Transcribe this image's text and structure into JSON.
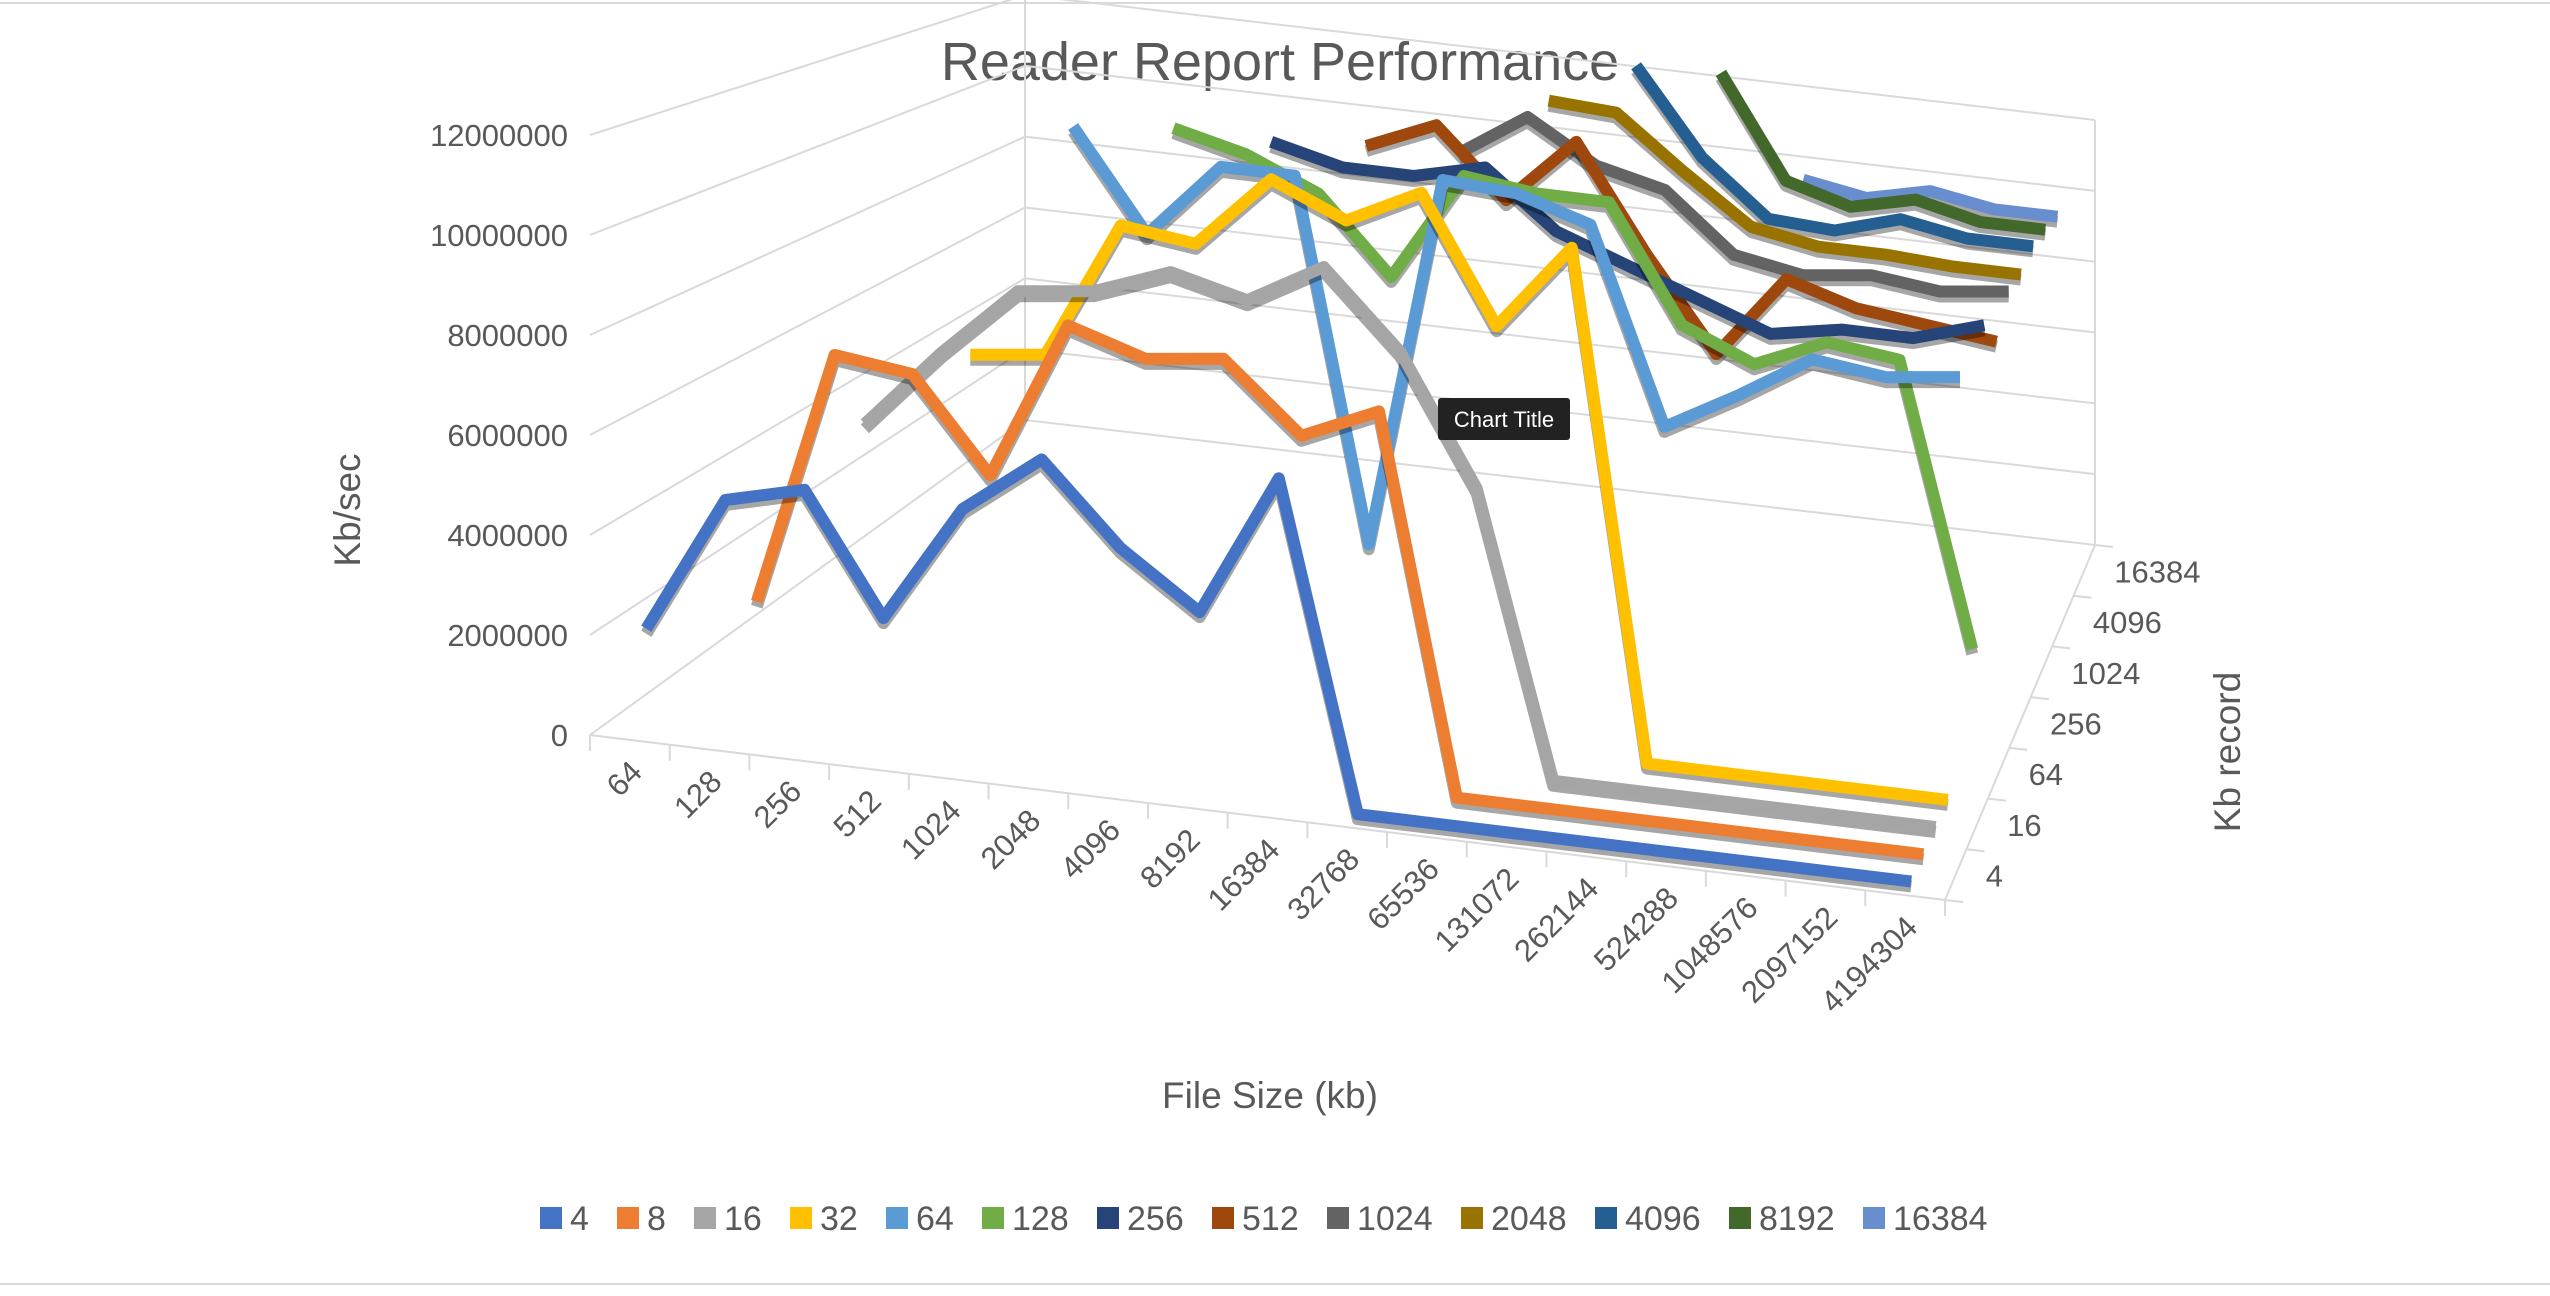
{
  "chart_data": {
    "type": "line",
    "chart_style": "3d-line",
    "title": "Reader Report Performance",
    "xlabel": "File Size (kb)",
    "ylabel": "Kb/sec",
    "zlabel": "Kb record",
    "tooltip": "Chart Title",
    "y_ticks": [
      "0",
      "2000000",
      "4000000",
      "6000000",
      "8000000",
      "10000000",
      "12000000"
    ],
    "ylim": [
      0,
      12000000
    ],
    "grid": true,
    "legend_position": "bottom",
    "categories": [
      "64",
      "128",
      "256",
      "512",
      "1024",
      "2048",
      "4096",
      "8192",
      "16384",
      "32768",
      "65536",
      "131072",
      "262144",
      "524288",
      "1048576",
      "2097152",
      "4194304"
    ],
    "z_ticks": [
      "4",
      "16",
      "64",
      "256",
      "1024",
      "4096",
      "16384"
    ],
    "series": [
      {
        "name": "4",
        "color": "#4472C4",
        "values": [
          2000000,
          4800000,
          5200000,
          2800000,
          5200000,
          6400000,
          4800000,
          3700000,
          6600000,
          0,
          0,
          0,
          0,
          0,
          0,
          0,
          0
        ]
      },
      {
        "name": "8",
        "color": "#ED7D31",
        "values": [
          null,
          2300000,
          7600000,
          7400000,
          5500000,
          8800000,
          8300000,
          8500000,
          7100000,
          7800000,
          0,
          0,
          0,
          0,
          0,
          0,
          0
        ]
      },
      {
        "name": "16",
        "color": "#A5A5A5",
        "values": [
          null,
          null,
          5800000,
          7500000,
          9000000,
          9200000,
          9800000,
          9400000,
          10300000,
          8700000,
          6000000,
          0,
          0,
          0,
          0,
          0,
          0
        ]
      },
      {
        "name": "32",
        "color": "#FFC000",
        "values": [
          null,
          null,
          null,
          7100000,
          7300000,
          10300000,
          10100000,
          11700000,
          11000000,
          11800000,
          9100000,
          11000000,
          0,
          0,
          0,
          0,
          0
        ]
      },
      {
        "name": "64",
        "color": "#5B9BD5",
        "values": [
          null,
          null,
          null,
          null,
          12000000,
          9800000,
          11500000,
          11500000,
          3500000,
          11800000,
          11700000,
          11200000,
          6900000,
          7800000,
          8800000,
          8600000,
          8800000
        ]
      },
      {
        "name": "128",
        "color": "#70AD47",
        "values": [
          null,
          null,
          null,
          null,
          null,
          11900000,
          11500000,
          10800000,
          9100000,
          11600000,
          11400000,
          11400000,
          8800000,
          8100000,
          8800000,
          8600000,
          2200000
        ]
      },
      {
        "name": "256",
        "color": "#264478",
        "values": [
          null,
          null,
          null,
          null,
          null,
          null,
          11500000,
          11100000,
          11100000,
          11500000,
          10200000,
          9600000,
          9000000,
          8400000,
          8700000,
          8700000,
          9200000
        ]
      },
      {
        "name": "512",
        "color": "#9E480E",
        "values": [
          null,
          null,
          null,
          null,
          null,
          null,
          null,
          11300000,
          12000000,
          10400000,
          12000000,
          9500000,
          7300000,
          9300000,
          8800000,
          8600000,
          8400000
        ]
      },
      {
        "name": "1024",
        "color": "#636363",
        "values": [
          null,
          null,
          null,
          null,
          null,
          null,
          null,
          null,
          11000000,
          12100000,
          11100000,
          10700000,
          9300000,
          9000000,
          9200000,
          9000000,
          9200000
        ]
      },
      {
        "name": "2048",
        "color": "#997300",
        "values": [
          null,
          null,
          null,
          null,
          null,
          null,
          null,
          null,
          null,
          12200000,
          12100000,
          10800000,
          9600000,
          9300000,
          9300000,
          9200000,
          9200000
        ]
      },
      {
        "name": "4096",
        "color": "#255E91",
        "values": [
          null,
          null,
          null,
          null,
          null,
          null,
          null,
          null,
          null,
          null,
          13000000,
          10800000,
          9400000,
          9300000,
          9800000,
          9500000,
          9500000
        ]
      },
      {
        "name": "8192",
        "color": "#43682B",
        "values": [
          null,
          null,
          null,
          null,
          null,
          null,
          null,
          null,
          null,
          null,
          null,
          12700000,
          10000000,
          9500000,
          9900000,
          9500000,
          9500000
        ]
      },
      {
        "name": "16384",
        "color": "#698ED0",
        "values": [
          null,
          null,
          null,
          null,
          null,
          null,
          null,
          null,
          null,
          null,
          null,
          null,
          9600000,
          9300000,
          9700000,
          9400000,
          9400000
        ]
      }
    ]
  }
}
